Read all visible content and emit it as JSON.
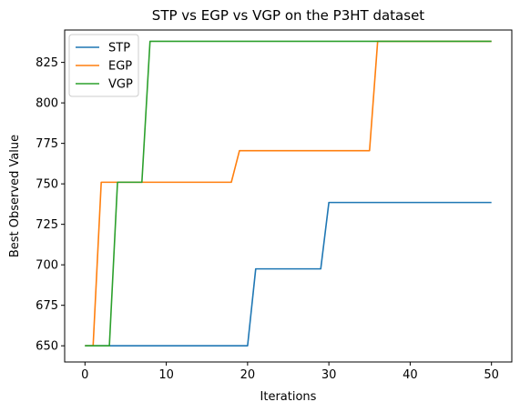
{
  "chart_data": {
    "type": "line",
    "title": "STP vs EGP vs VGP on the P3HT dataset",
    "xlabel": "Iterations",
    "ylabel": "Best Observed Value",
    "xlim": [
      -2.5,
      52.5
    ],
    "ylim": [
      640,
      845
    ],
    "xticks": [
      0,
      10,
      20,
      30,
      40,
      50
    ],
    "yticks": [
      650,
      675,
      700,
      725,
      750,
      775,
      800,
      825
    ],
    "grid": false,
    "legend_position": "top-left",
    "series": [
      {
        "name": "STP",
        "color": "#1f77b4",
        "x": [
          0,
          20,
          21,
          29,
          30,
          50
        ],
        "y": [
          650,
          650,
          697.5,
          697.5,
          738.5,
          738.5
        ]
      },
      {
        "name": "EGP",
        "color": "#ff7f0e",
        "x": [
          0,
          1,
          2,
          18,
          19,
          35,
          36,
          50
        ],
        "y": [
          650,
          650,
          751,
          751,
          770.5,
          770.5,
          838,
          838
        ]
      },
      {
        "name": "VGP",
        "color": "#2ca02c",
        "x": [
          0,
          3,
          4,
          7,
          8,
          50
        ],
        "y": [
          650,
          650,
          751,
          751,
          838,
          838
        ]
      }
    ]
  }
}
